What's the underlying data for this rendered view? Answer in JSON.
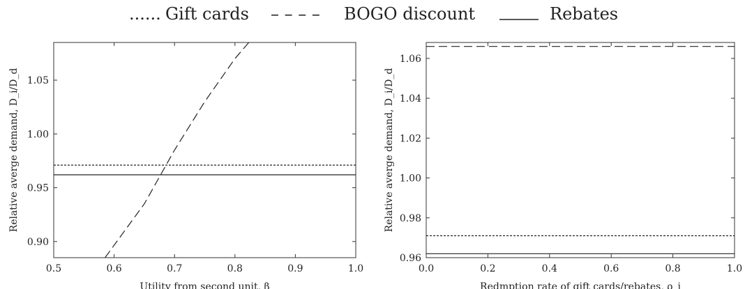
{
  "legend": {
    "items": [
      {
        "marker": "......",
        "label": "Gift cards",
        "style": "dotted"
      },
      {
        "marker": "– – – –",
        "label": "BOGO discount",
        "style": "dashed"
      },
      {
        "marker": "_____",
        "label": "Rebates",
        "style": "solid"
      }
    ]
  },
  "chart_data": [
    {
      "type": "line",
      "xlabel": "Utility from second unit, β",
      "ylabel": "Relative averge demand, D_i/D_d",
      "xlim": [
        0.5,
        1.0
      ],
      "ylim": [
        0.885,
        1.085
      ],
      "xticks": [
        0.5,
        0.6,
        0.7,
        0.8,
        0.9,
        1.0
      ],
      "yticks": [
        0.9,
        0.95,
        1.0,
        1.05
      ],
      "ytick_decimals": 2,
      "grid": false,
      "series": [
        {
          "name": "Gift cards",
          "style": "dotted",
          "x": [
            0.5,
            1.0
          ],
          "y": [
            0.971,
            0.971
          ]
        },
        {
          "name": "BOGO discount",
          "style": "dashed",
          "x": [
            0.585,
            0.65,
            0.7,
            0.75,
            0.8,
            0.823
          ],
          "y": [
            0.885,
            0.935,
            0.985,
            1.03,
            1.07,
            1.085
          ]
        },
        {
          "name": "Rebates",
          "style": "solid",
          "x": [
            0.5,
            1.0
          ],
          "y": [
            0.962,
            0.962
          ]
        }
      ]
    },
    {
      "type": "line",
      "xlabel": "Redmption rate of gift cards/rebates, ρ_i",
      "ylabel": "Relative averge demand, D_i/D_d",
      "xlim": [
        0.0,
        1.0
      ],
      "ylim": [
        0.96,
        1.068
      ],
      "xticks": [
        0.0,
        0.2,
        0.4,
        0.6,
        0.8,
        1.0
      ],
      "yticks": [
        0.96,
        0.98,
        1.0,
        1.02,
        1.04,
        1.06
      ],
      "ytick_decimals": 2,
      "grid": false,
      "series": [
        {
          "name": "Gift cards",
          "style": "dotted",
          "x": [
            0.0,
            1.0
          ],
          "y": [
            0.971,
            0.971
          ]
        },
        {
          "name": "BOGO discount",
          "style": "dashed",
          "x": [
            0.0,
            1.0
          ],
          "y": [
            1.066,
            1.066
          ]
        },
        {
          "name": "Rebates",
          "style": "solid",
          "x": [
            0.0,
            1.0
          ],
          "y": [
            0.962,
            0.962
          ]
        }
      ]
    }
  ]
}
